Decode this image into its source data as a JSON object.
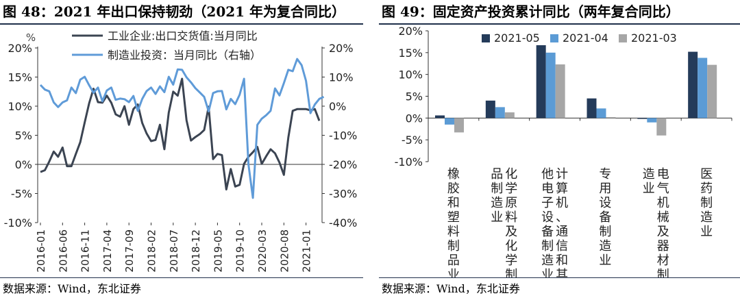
{
  "left": {
    "title": "图 48：2021 年出口保持韧劲（2021 年为复合同比）",
    "source": "数据来源：Wind，东北证券",
    "unit": "%",
    "chart_data": {
      "type": "line",
      "x_ticks": [
        "2016-01",
        "2016-06",
        "2016-11",
        "2017-04",
        "2017-09",
        "2018-02",
        "2018-07",
        "2018-12",
        "2019-05",
        "2019-10",
        "2020-03",
        "2020-08",
        "2021-01"
      ],
      "ylim_left": [
        -10,
        20
      ],
      "ylim_right": [
        -40,
        20
      ],
      "yticks_left": [
        "20%",
        "15%",
        "10%",
        "5%",
        "0%",
        "-5%",
        "-10%"
      ],
      "yticks_right": [
        "20%",
        "10%",
        "0%",
        "-10%",
        "-20%",
        "-30%",
        "-40%"
      ],
      "series": [
        {
          "name": "工业企业:出口交货值:当月同比",
          "axis": "left",
          "color": "#3b4452",
          "values": [
            -1.3,
            -1,
            0.5,
            2.2,
            1.3,
            2.9,
            -0.3,
            -0.3,
            1.8,
            3.8,
            7.2,
            10.5,
            13,
            10.7,
            10.6,
            11.8,
            10.6,
            8.6,
            8.2,
            10,
            6.8,
            9.5,
            10.3,
            7.1,
            5.3,
            4,
            4.2,
            6.8,
            2.6,
            8.9,
            12.5,
            11.8,
            14.7,
            7.6,
            4.1,
            4.7,
            5.2,
            5.9,
            9.9,
            0.9,
            1.8,
            1.6,
            -4.3,
            -0.8,
            -3.8,
            -3.5,
            0.1,
            1.3,
            2.1,
            3,
            0.1,
            1.4,
            2.6,
            1.9,
            0.3,
            -1.8,
            4.6,
            9.2,
            9.5,
            9.5,
            9.5,
            9.3,
            9.5,
            7.5
          ],
          "grid": false
        },
        {
          "name": "制造业投资：当月同比（右轴）",
          "axis": "right",
          "color": "#5f9bd8",
          "values": [
            7.3,
            5.7,
            5.1,
            1.3,
            -0.3,
            1.3,
            2,
            6.4,
            4.5,
            9.1,
            10.1,
            7.2,
            4.6,
            6.4,
            1.7,
            5.4,
            6.4,
            2.2,
            2.6,
            2.4,
            1.4,
            3.5,
            -1.6,
            2.5,
            5.2,
            6.4,
            4.2,
            6.8,
            4.8,
            10.1,
            7.4,
            12.6,
            12.5,
            9.9,
            8.2,
            6.2,
            4.7,
            3.2,
            -1.8,
            4.5,
            5.1,
            5.2,
            -1.1,
            2.5,
            0.7,
            3.9,
            9.4,
            -20,
            -31.5,
            -6.4,
            -4.3,
            -3.1,
            -1.6,
            6.1,
            3.7,
            7.9,
            12.5,
            12,
            16.2,
            14.1,
            8.7,
            -2.4,
            0.6,
            2.5,
            3.2
          ]
        }
      ]
    }
  },
  "right": {
    "title": "图 49：固定资产投资累计同比（两年复合同比）",
    "source": "数据来源：Wind，东北证券",
    "chart_data": {
      "type": "bar",
      "ylim": [
        -10,
        20
      ],
      "yticks": [
        "20%",
        "15%",
        "10%",
        "5%",
        "0%",
        "-5%",
        "-10%"
      ],
      "categories": [
        {
          "label": "橡胶和塑料制品业",
          "cols": [
            "橡胶和塑料制品业"
          ]
        },
        {
          "label": "化学原料及化学制品制造业",
          "cols": [
            "品制造业",
            "化学原料及化学制"
          ]
        },
        {
          "label": "计算机、通信和其他电子设备制造业",
          "cols": [
            "他电子设备制造业",
            "计算机、通信和其"
          ]
        },
        {
          "label": "专用设备制造业",
          "cols": [
            "专用设备制造业"
          ]
        },
        {
          "label": "电气机械及器材制造业",
          "cols": [
            "造业",
            "电气机械及器材制"
          ]
        },
        {
          "label": "医药制造业",
          "cols": [
            "医药制造业"
          ]
        }
      ],
      "series": [
        {
          "name": "2021-05",
          "color": "#243b5a",
          "values": [
            0.6,
            4.0,
            16.7,
            4.5,
            -0.2,
            15.2
          ]
        },
        {
          "name": "2021-04",
          "color": "#5b9bd5",
          "values": [
            -1.5,
            2.5,
            15.0,
            2.2,
            -1.0,
            13.8
          ]
        },
        {
          "name": "2021-03",
          "color": "#a6a6a6",
          "values": [
            -3.3,
            1.3,
            12.3,
            0.2,
            -4.0,
            12.2
          ]
        }
      ]
    }
  }
}
